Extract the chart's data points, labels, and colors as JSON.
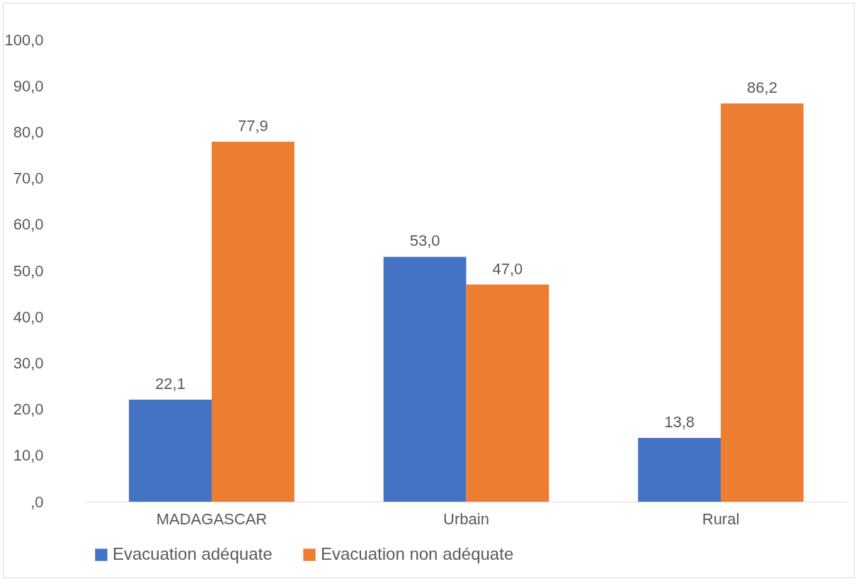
{
  "chart_data": {
    "type": "bar",
    "categories": [
      "MADAGASCAR",
      "Urbain",
      "Rural"
    ],
    "series": [
      {
        "name": "Evacuation adéquate",
        "color": "#4472c4",
        "values": [
          22.1,
          53.0,
          13.8
        ],
        "value_labels": [
          "22,1",
          "53,0",
          "13,8"
        ]
      },
      {
        "name": "Evacuation non adéquate",
        "color": "#ed7d31",
        "values": [
          77.9,
          47.0,
          86.2
        ],
        "value_labels": [
          "77,9",
          "47,0",
          "86,2"
        ]
      }
    ],
    "ylim": [
      0,
      100
    ],
    "yticks": [
      {
        "value": 0,
        "label": ",0"
      },
      {
        "value": 10,
        "label": "10,0"
      },
      {
        "value": 20,
        "label": "20,0"
      },
      {
        "value": 30,
        "label": "30,0"
      },
      {
        "value": 40,
        "label": "40,0"
      },
      {
        "value": 50,
        "label": "50,0"
      },
      {
        "value": 60,
        "label": "60,0"
      },
      {
        "value": 70,
        "label": "70,0"
      },
      {
        "value": 80,
        "label": "80,0"
      },
      {
        "value": 90,
        "label": "90,0"
      },
      {
        "value": 100,
        "label": "100,0"
      }
    ],
    "grid": false,
    "legend": "bottom"
  }
}
